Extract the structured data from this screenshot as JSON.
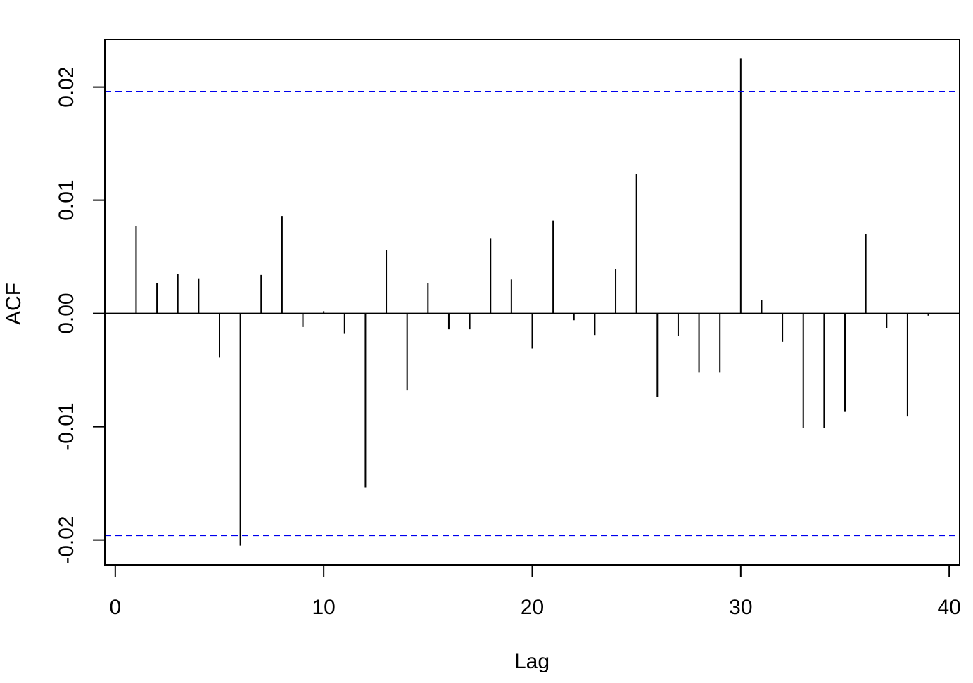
{
  "chart_data": {
    "type": "bar",
    "xlabel": "Lag",
    "ylabel": "ACF",
    "xlim": [
      -0.5,
      40.5
    ],
    "ylim": [
      -0.0222,
      0.0242
    ],
    "x_ticks": [
      0,
      10,
      20,
      30,
      40
    ],
    "x_tick_labels": [
      "0",
      "10",
      "20",
      "30",
      "40"
    ],
    "y_ticks": [
      -0.02,
      -0.01,
      0.0,
      0.01,
      0.02
    ],
    "y_tick_labels": [
      "-0.02",
      "-0.01",
      "0.00",
      "0.01",
      "0.02"
    ],
    "confidence_bound": 0.0196,
    "colors": {
      "bars": "#000000",
      "bounds": "#0000ee",
      "zero_line": "#000000"
    },
    "lags": [
      1,
      2,
      3,
      4,
      5,
      6,
      7,
      8,
      9,
      10,
      11,
      12,
      13,
      14,
      15,
      16,
      17,
      18,
      19,
      20,
      21,
      22,
      23,
      24,
      25,
      26,
      27,
      28,
      29,
      30,
      31,
      32,
      33,
      34,
      35,
      36,
      37,
      38,
      39
    ],
    "acf": [
      0.0077,
      0.0027,
      0.0035,
      0.0031,
      -0.0039,
      -0.0205,
      0.0034,
      0.0086,
      -0.0012,
      0.0002,
      -0.0018,
      -0.0154,
      0.0056,
      -0.0068,
      0.0027,
      -0.0014,
      -0.0014,
      0.0066,
      0.003,
      -0.0031,
      0.0082,
      -0.0006,
      -0.0019,
      0.0039,
      0.0123,
      -0.0074,
      -0.002,
      -0.0052,
      -0.0052,
      0.0225,
      0.0012,
      -0.0025,
      -0.0101,
      -0.0101,
      -0.0087,
      0.007,
      -0.0013,
      -0.0091,
      -0.0002
    ]
  }
}
